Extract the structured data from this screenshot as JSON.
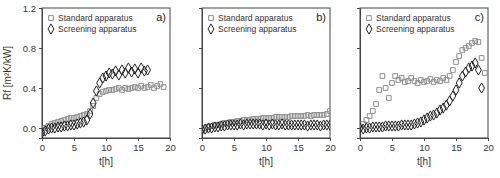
{
  "chart_data": [
    {
      "type": "scatter",
      "title": "a)",
      "x_label": "t[h]",
      "y_label": "Rf [m²K/kW]",
      "xlim": [
        0,
        20
      ],
      "xticks": [
        0,
        5,
        10,
        15,
        20
      ],
      "ylim": [
        -0.1,
        1.2
      ],
      "yticks": [
        {
          "value": 0,
          "label": "0.0"
        },
        0.4,
        0.8,
        1.2
      ],
      "legend": "top-left",
      "grid": false,
      "series": [
        {
          "name": "Standard apparatus",
          "color": "#8c8c8c",
          "marker": "square",
          "x": [
            0,
            0.5,
            1,
            1.5,
            2,
            2.5,
            3,
            3.5,
            4,
            4.5,
            5,
            5.5,
            6,
            6.5,
            7,
            7.5,
            8,
            8.5,
            9,
            9.5,
            10,
            10.5,
            11,
            11.5,
            12,
            12.5,
            13,
            13.5,
            14,
            14.5,
            15,
            15.5,
            16,
            16.5,
            17,
            17.5,
            18,
            18.5,
            19
          ],
          "values": [
            -0.02,
            0.0,
            0.02,
            0.04,
            0.05,
            0.06,
            0.07,
            0.08,
            0.09,
            0.1,
            0.1,
            0.11,
            0.12,
            0.13,
            0.14,
            0.17,
            0.22,
            0.3,
            0.34,
            0.36,
            0.37,
            0.38,
            0.38,
            0.39,
            0.4,
            0.38,
            0.4,
            0.39,
            0.4,
            0.41,
            0.4,
            0.42,
            0.4,
            0.41,
            0.43,
            0.4,
            0.42,
            0.44,
            0.41
          ]
        },
        {
          "name": "Screening apparatus",
          "color": "#222222",
          "marker": "diamond",
          "x": [
            0,
            0.5,
            1,
            1.5,
            2,
            2.5,
            3,
            3.5,
            4,
            4.5,
            5,
            5.5,
            6,
            6.5,
            7,
            7.5,
            8,
            8.5,
            9,
            9.5,
            10,
            10.5,
            11,
            11.5,
            12,
            12.5,
            13,
            13.5,
            14,
            14.5,
            15,
            15.5,
            16,
            16.5
          ],
          "values": [
            -0.05,
            -0.03,
            -0.01,
            0,
            0,
            0.01,
            0.01,
            0.02,
            0.02,
            0.03,
            0.03,
            0.04,
            0.05,
            0.06,
            0.08,
            0.14,
            0.25,
            0.37,
            0.45,
            0.5,
            0.52,
            0.55,
            0.54,
            0.57,
            0.53,
            0.58,
            0.55,
            0.6,
            0.56,
            0.59,
            0.55,
            0.6,
            0.57,
            0.58
          ]
        }
      ]
    },
    {
      "type": "scatter",
      "title": "b)",
      "x_label": "t[h]",
      "tick_labels": "x",
      "xlim": [
        0,
        20
      ],
      "xticks": [
        0,
        5,
        10,
        15,
        20
      ],
      "ylim": [
        -0.1,
        1.2
      ],
      "yticks": [
        0,
        0.4,
        0.8,
        1.2
      ],
      "legend": "top-left",
      "grid": false,
      "series": [
        {
          "name": "Standard apparatus",
          "color": "#8c8c8c",
          "marker": "square",
          "x": [
            0,
            0.5,
            1,
            1.5,
            2,
            2.5,
            3,
            3.5,
            4,
            4.5,
            5,
            5.5,
            6,
            6.5,
            7,
            7.5,
            8,
            8.5,
            9,
            9.5,
            10,
            10.5,
            11,
            11.5,
            12,
            12.5,
            13,
            13.5,
            14,
            14.5,
            15,
            15.5,
            16,
            16.5,
            17,
            17.5,
            18,
            18.5,
            19,
            19.5,
            20
          ],
          "values": [
            -0.01,
            0,
            0.01,
            0.02,
            0.03,
            0.03,
            0.04,
            0.05,
            0.05,
            0.06,
            0.06,
            0.07,
            0.07,
            0.08,
            0.08,
            0.08,
            0.09,
            0.09,
            0.09,
            0.1,
            0.1,
            0.1,
            0.1,
            0.11,
            0.11,
            0.11,
            0.11,
            0.11,
            0.12,
            0.12,
            0.12,
            0.12,
            0.12,
            0.13,
            0.12,
            0.13,
            0.13,
            0.13,
            0.13,
            0.14,
            0.17
          ]
        },
        {
          "name": "Screening apparatus",
          "color": "#222222",
          "marker": "diamond",
          "x": [
            0,
            0.5,
            1,
            1.5,
            2,
            2.5,
            3,
            3.5,
            4,
            4.5,
            5,
            5.5,
            6,
            6.5,
            7,
            7.5,
            8,
            8.5,
            9,
            9.5,
            10,
            10.5,
            11,
            11.5,
            12,
            12.5,
            13,
            13.5,
            14,
            14.5,
            15,
            15.5,
            16,
            16.5,
            17,
            17.5,
            18,
            18.5,
            19,
            19.5,
            20
          ],
          "values": [
            -0.02,
            -0.01,
            0,
            0,
            0.01,
            0.01,
            0.02,
            0.02,
            0.03,
            0.03,
            0.03,
            0.03,
            0.04,
            0.03,
            0.04,
            0.04,
            0.04,
            0.04,
            0.04,
            0.03,
            0.04,
            0.03,
            0.04,
            0.03,
            0.03,
            0.04,
            0.03,
            0.03,
            0.03,
            0.03,
            0.03,
            0.03,
            0.03,
            0.02,
            0.03,
            0.03,
            0.03,
            0.02,
            0.03,
            0.03,
            0.03
          ]
        }
      ]
    },
    {
      "type": "scatter",
      "title": "c)",
      "x_label": "t[h]",
      "tick_labels": "x",
      "xlim": [
        0,
        20
      ],
      "xticks": [
        0,
        5,
        10,
        15,
        20
      ],
      "ylim": [
        -0.1,
        1.2
      ],
      "yticks": [
        0,
        0.4,
        0.8,
        1.2
      ],
      "legend": "top-left",
      "grid": false,
      "series": [
        {
          "name": "Standard apparatus",
          "color": "#8c8c8c",
          "marker": "square",
          "x": [
            0,
            0.5,
            1,
            1.5,
            2,
            2.5,
            3,
            3.5,
            4,
            4.5,
            5,
            5.5,
            6,
            6.5,
            7,
            7.5,
            8,
            8.5,
            9,
            9.5,
            10,
            10.5,
            11,
            11.5,
            12,
            12.5,
            13,
            13.5,
            14,
            14.5,
            15,
            15.5,
            16,
            16.5,
            17,
            17.5,
            18,
            18.5,
            19,
            19.5
          ],
          "values": [
            0,
            0.04,
            0.08,
            0.12,
            0.17,
            0.24,
            0.38,
            0.52,
            0.4,
            0.3,
            0.45,
            0.52,
            0.48,
            0.5,
            0.46,
            0.47,
            0.5,
            0.47,
            0.45,
            0.48,
            0.46,
            0.47,
            0.49,
            0.46,
            0.48,
            0.47,
            0.5,
            0.48,
            0.52,
            0.58,
            0.66,
            0.72,
            0.78,
            0.8,
            0.82,
            0.85,
            0.87,
            0.86,
            0.7,
            0.55
          ]
        },
        {
          "name": "Screening apparatus",
          "color": "#222222",
          "marker": "diamond",
          "x": [
            0,
            0.5,
            1,
            1.5,
            2,
            2.5,
            3,
            3.5,
            4,
            4.5,
            5,
            5.5,
            6,
            6.5,
            7,
            7.5,
            8,
            8.5,
            9,
            9.5,
            10,
            10.5,
            11,
            11.5,
            12,
            12.5,
            13,
            13.5,
            14,
            14.5,
            15,
            15.5,
            16,
            16.5,
            17,
            17.5,
            18,
            18.5,
            19
          ],
          "values": [
            0,
            -0.01,
            0,
            0,
            0.01,
            0.01,
            0.01,
            0.01,
            0.02,
            0.02,
            0.02,
            0.02,
            0.02,
            0.03,
            0.03,
            0.03,
            0.03,
            0.04,
            0.05,
            0.06,
            0.08,
            0.1,
            0.12,
            0.13,
            0.15,
            0.18,
            0.2,
            0.23,
            0.27,
            0.32,
            0.38,
            0.45,
            0.52,
            0.56,
            0.6,
            0.62,
            0.65,
            0.58,
            0.4
          ]
        }
      ]
    }
  ]
}
